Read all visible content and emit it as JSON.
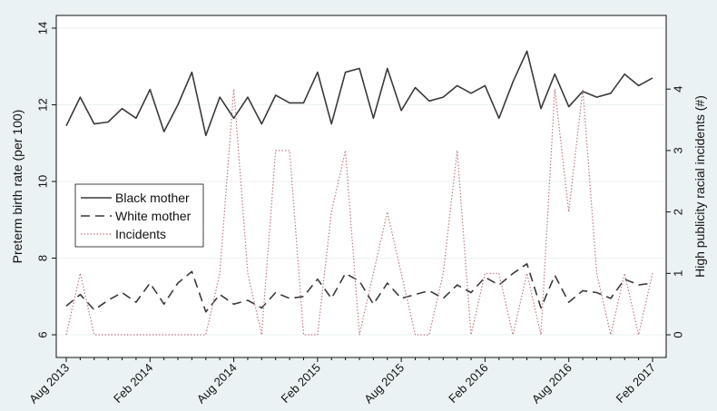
{
  "chart_data": {
    "type": "line",
    "title": "",
    "xlabel": "",
    "ylabel": "Preterm birth rate (per 100)",
    "y2label": "High publicity racial incidents (#)",
    "ylim": [
      6,
      14
    ],
    "y2lim": [
      0,
      5
    ],
    "y_ticks": [
      "6",
      "8",
      "10",
      "12",
      "14"
    ],
    "y2_ticks": [
      "0",
      "1",
      "2",
      "3",
      "4"
    ],
    "x_ticks": [
      {
        "index": 0,
        "label": "Aug 2013"
      },
      {
        "index": 6,
        "label": "Feb 2014"
      },
      {
        "index": 12,
        "label": "Aug 2014"
      },
      {
        "index": 18,
        "label": "Feb 2015"
      },
      {
        "index": 24,
        "label": "Aug 2015"
      },
      {
        "index": 30,
        "label": "Feb 2016"
      },
      {
        "index": 36,
        "label": "Aug 2016"
      },
      {
        "index": 42,
        "label": "Feb 2017"
      }
    ],
    "x_count": 43,
    "grid": true,
    "legend_position": "middle-left",
    "series": [
      {
        "name": "Black mother",
        "axis": "left",
        "style": "solid",
        "color": "#3a3a3a",
        "values": [
          11.45,
          12.2,
          11.5,
          11.55,
          11.9,
          11.65,
          12.4,
          11.3,
          12.0,
          12.85,
          11.2,
          12.2,
          11.65,
          12.2,
          11.5,
          12.25,
          12.05,
          12.05,
          12.85,
          11.5,
          12.85,
          12.95,
          11.65,
          12.95,
          11.85,
          12.45,
          12.1,
          12.2,
          12.5,
          12.3,
          12.5,
          11.65,
          12.6,
          13.4,
          11.9,
          12.8,
          11.95,
          12.35,
          12.2,
          12.3,
          12.8,
          12.5,
          12.7
        ]
      },
      {
        "name": "White mother",
        "axis": "left",
        "style": "dashed",
        "color": "#3a3a3a",
        "values": [
          6.75,
          7.05,
          6.65,
          6.9,
          7.1,
          6.85,
          7.35,
          6.8,
          7.35,
          7.65,
          6.6,
          7.05,
          6.8,
          6.9,
          6.7,
          7.1,
          6.95,
          7.0,
          7.45,
          6.95,
          7.6,
          7.4,
          6.8,
          7.35,
          6.95,
          7.05,
          7.15,
          6.95,
          7.3,
          7.1,
          7.5,
          7.3,
          7.6,
          7.85,
          6.7,
          7.55,
          6.85,
          7.15,
          7.1,
          6.95,
          7.45,
          7.3,
          7.35
        ]
      },
      {
        "name": "Incidents",
        "axis": "right",
        "style": "dotted",
        "color": "#c07a80",
        "values": [
          0,
          1,
          0,
          0,
          0,
          0,
          0,
          0,
          0,
          0,
          0,
          1,
          4,
          1,
          0,
          3,
          3,
          0,
          0,
          2,
          3,
          0,
          1,
          2,
          1,
          0,
          0,
          1,
          3,
          0,
          1,
          1,
          0,
          1,
          0,
          4,
          2,
          4,
          1,
          0,
          1,
          0,
          1
        ]
      }
    ]
  }
}
